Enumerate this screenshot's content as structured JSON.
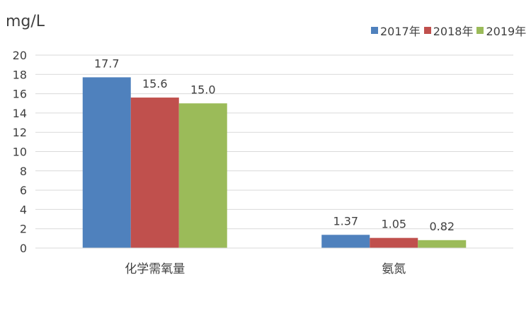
{
  "chart_data": {
    "type": "bar",
    "ylabel": "mg/L",
    "categories": [
      "化学需氧量",
      "氨氮"
    ],
    "series": [
      {
        "name": "2017年",
        "color": "#4F81BD",
        "values": [
          17.7,
          1.37
        ],
        "labels": [
          "17.7",
          "1.37"
        ]
      },
      {
        "name": "2018年",
        "color": "#C0504D",
        "values": [
          15.6,
          1.05
        ],
        "labels": [
          "15.6",
          "1.05"
        ]
      },
      {
        "name": "2019年",
        "color": "#9BBB59",
        "values": [
          15.0,
          0.82
        ],
        "labels": [
          "15.0",
          "0.82"
        ]
      }
    ],
    "ylim": [
      0,
      20
    ],
    "yticks": [
      "0",
      "2",
      "4",
      "6",
      "8",
      "10",
      "12",
      "14",
      "16",
      "18",
      "20"
    ],
    "grid": true,
    "legend_position": "top-right"
  }
}
